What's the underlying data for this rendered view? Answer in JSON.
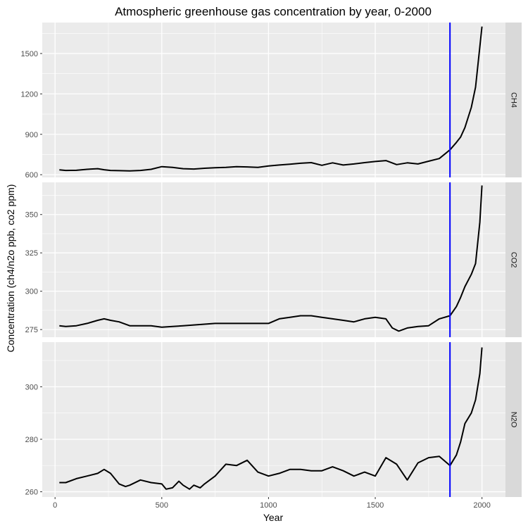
{
  "chart_data": {
    "type": "line",
    "title": "Atmospheric greenhouse gas concentration by year, 0-2000",
    "xlabel": "Year",
    "ylabel": "Concentration (ch4/n2o ppb, co2 ppm)",
    "x_ticks": [
      0,
      500,
      1000,
      1500,
      2000
    ],
    "xlim": [
      -60,
      2110
    ],
    "vline": {
      "x": 1850,
      "color": "#0000ff"
    },
    "line_color": "#000000",
    "grid": true,
    "legend": "none",
    "panels": [
      {
        "label": "CH4",
        "ylim": [
          580,
          1730
        ],
        "y_ticks": [
          600,
          900,
          1200,
          1500
        ],
        "x": [
          20,
          50,
          100,
          150,
          200,
          230,
          260,
          300,
          350,
          400,
          450,
          500,
          550,
          600,
          650,
          700,
          750,
          800,
          850,
          900,
          950,
          1000,
          1050,
          1100,
          1150,
          1200,
          1250,
          1300,
          1350,
          1400,
          1450,
          1500,
          1550,
          1600,
          1650,
          1700,
          1750,
          1800,
          1850,
          1880,
          1900,
          1920,
          1950,
          1970,
          1990,
          2000
        ],
        "y": [
          636,
          632,
          633,
          640,
          645,
          637,
          632,
          630,
          628,
          632,
          640,
          660,
          655,
          645,
          642,
          648,
          652,
          655,
          660,
          658,
          655,
          665,
          672,
          678,
          685,
          690,
          670,
          688,
          672,
          680,
          690,
          698,
          705,
          675,
          688,
          680,
          700,
          720,
          785,
          840,
          880,
          950,
          1100,
          1250,
          1550,
          1700
        ]
      },
      {
        "label": "CO2",
        "ylim": [
          270,
          371
        ],
        "y_ticks": [
          275,
          300,
          325,
          350
        ],
        "x": [
          20,
          50,
          100,
          150,
          200,
          230,
          260,
          300,
          350,
          400,
          450,
          500,
          550,
          600,
          650,
          700,
          750,
          800,
          850,
          900,
          950,
          1000,
          1050,
          1100,
          1150,
          1200,
          1250,
          1300,
          1350,
          1400,
          1450,
          1500,
          1550,
          1580,
          1610,
          1650,
          1700,
          1750,
          1800,
          1850,
          1880,
          1900,
          1920,
          1950,
          1970,
          1990,
          2000
        ],
        "y": [
          277.5,
          277,
          277.5,
          279,
          281,
          282,
          281,
          280,
          277.5,
          277.5,
          277.5,
          276.5,
          277,
          277.5,
          278,
          278.5,
          279,
          279,
          279,
          279,
          279,
          279,
          282,
          283,
          284,
          284,
          283,
          282,
          281,
          280,
          282,
          283,
          282,
          276,
          274,
          276,
          277,
          277.5,
          282,
          284,
          290,
          296,
          303,
          311,
          318,
          345,
          369
        ]
      },
      {
        "label": "N2O",
        "ylim": [
          258,
          317
        ],
        "y_ticks": [
          260,
          280,
          300
        ],
        "x": [
          20,
          50,
          100,
          150,
          200,
          230,
          260,
          300,
          330,
          350,
          400,
          450,
          500,
          520,
          550,
          580,
          600,
          630,
          650,
          680,
          700,
          750,
          800,
          850,
          900,
          950,
          1000,
          1050,
          1100,
          1150,
          1200,
          1250,
          1300,
          1350,
          1400,
          1450,
          1500,
          1550,
          1600,
          1650,
          1700,
          1750,
          1800,
          1850,
          1880,
          1900,
          1920,
          1950,
          1970,
          1990,
          2000
        ],
        "y": [
          263.5,
          263.5,
          265,
          266,
          267,
          268.5,
          267,
          263,
          262,
          262.5,
          264.5,
          263.5,
          263,
          261,
          261.5,
          264,
          262.5,
          261,
          262.5,
          261.5,
          263,
          266,
          270.5,
          270,
          272,
          267.5,
          266,
          267,
          268.5,
          268.5,
          268,
          268,
          269.5,
          268,
          266,
          267.5,
          266,
          273,
          270.5,
          264.5,
          271,
          273,
          273.5,
          270,
          274,
          279,
          286,
          290,
          295,
          305,
          315
        ]
      }
    ]
  }
}
